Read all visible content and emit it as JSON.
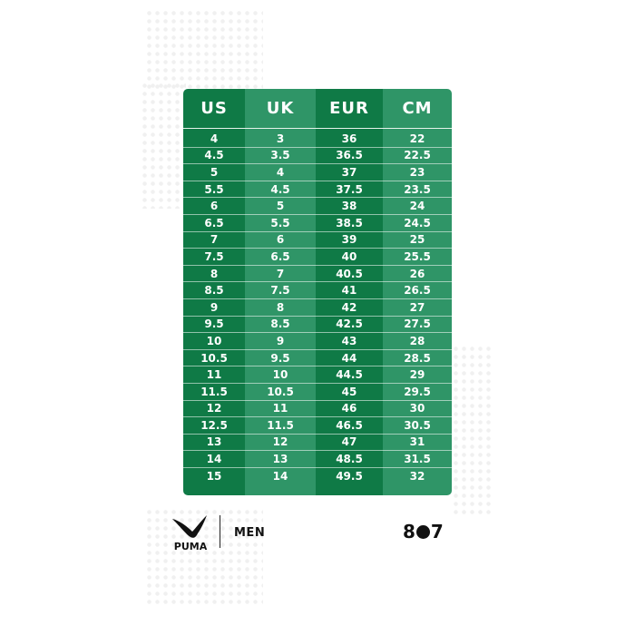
{
  "table": {
    "headers": [
      "US",
      "UK",
      "EUR",
      "CM"
    ],
    "columns": [
      [
        "4",
        "4.5",
        "5",
        "5.5",
        "6",
        "6.5",
        "7",
        "7.5",
        "8",
        "8.5",
        "9",
        "9.5",
        "10",
        "10.5",
        "11",
        "11.5",
        "12",
        "12.5",
        "13",
        "14",
        "15"
      ],
      [
        "3",
        "3.5",
        "4",
        "4.5",
        "5",
        "5.5",
        "6",
        "6.5",
        "7",
        "7.5",
        "8",
        "8.5",
        "9",
        "9.5",
        "10",
        "10.5",
        "11",
        "11.5",
        "12",
        "13",
        "14"
      ],
      [
        "36",
        "36.5",
        "37",
        "37.5",
        "38",
        "38.5",
        "39",
        "40",
        "40.5",
        "41",
        "42",
        "42.5",
        "43",
        "44",
        "44.5",
        "45",
        "46",
        "46.5",
        "47",
        "48.5",
        "49.5"
      ],
      [
        "22",
        "22.5",
        "23",
        "23.5",
        "24",
        "24.5",
        "25",
        "25.5",
        "26",
        "26.5",
        "27",
        "27.5",
        "28",
        "28.5",
        "29",
        "29.5",
        "30",
        "30.5",
        "31",
        "31.5",
        "32"
      ]
    ]
  },
  "footer": {
    "logo": "PUMA",
    "category": "MEN",
    "brand_left": "8",
    "brand_right": "7"
  },
  "colors": {
    "dark_green": "#0f7a46",
    "light_green": "#2f9567"
  }
}
